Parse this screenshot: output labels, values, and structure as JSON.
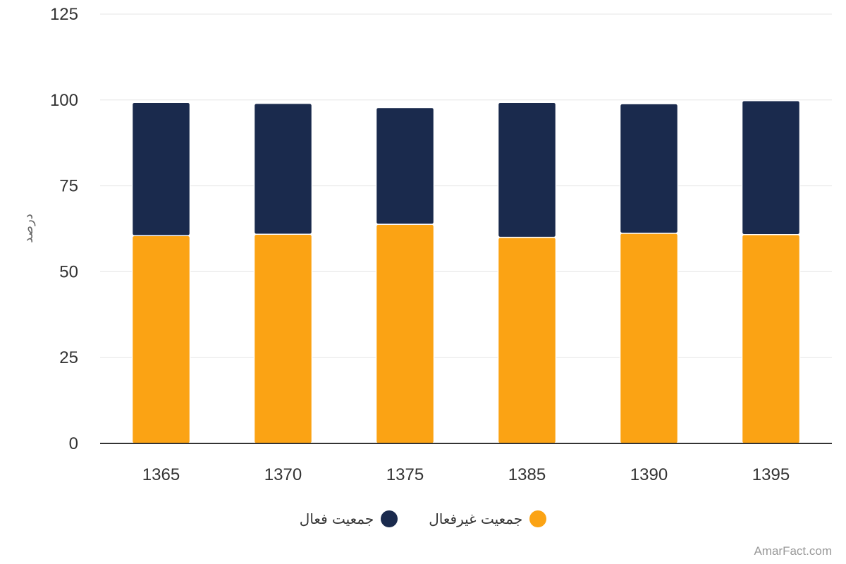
{
  "chart_data": {
    "type": "bar",
    "stacked": true,
    "categories": [
      "1365",
      "1370",
      "1375",
      "1385",
      "1390",
      "1395"
    ],
    "series": [
      {
        "name": "جمعیت غیرفعال",
        "color": "#FBA314",
        "values": [
          60.5,
          60.9,
          63.8,
          60.0,
          61.2,
          60.8
        ]
      },
      {
        "name": "جمعیت فعال",
        "color": "#1A2A4D",
        "values": [
          38.8,
          38.1,
          34.0,
          39.3,
          37.7,
          39.0
        ]
      }
    ],
    "ylabel": "درصد",
    "ylim": [
      0,
      125
    ],
    "yticks": [
      0,
      25,
      50,
      75,
      100,
      125
    ],
    "grid": true,
    "legend_position": "bottom"
  },
  "credit": "AmarFact.com"
}
